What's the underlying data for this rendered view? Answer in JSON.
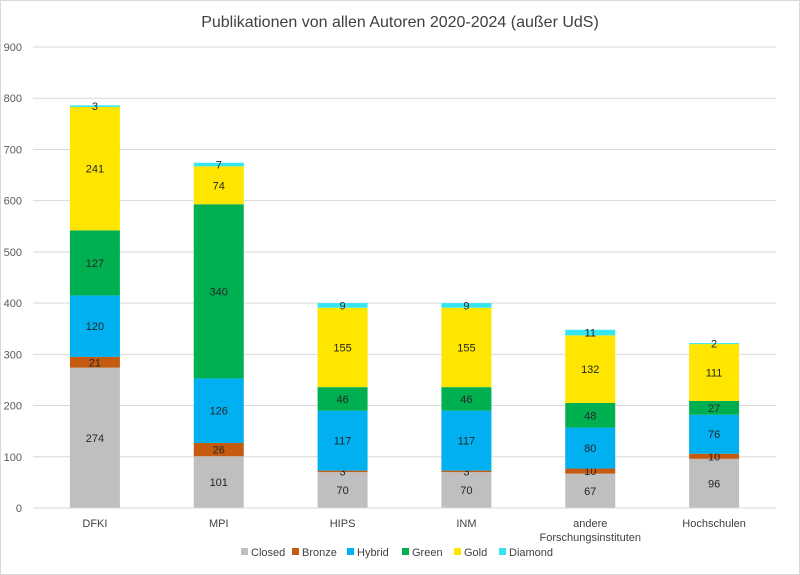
{
  "chart_data": {
    "type": "bar",
    "stacked": true,
    "title": "Publikationen von allen Autoren 2020-2024 (außer UdS)",
    "xlabel": "",
    "ylabel": "",
    "ylim": [
      0,
      900
    ],
    "yticks": [
      0,
      100,
      200,
      300,
      400,
      500,
      600,
      700,
      800,
      900
    ],
    "grid": true,
    "legend_position": "bottom",
    "categories": [
      [
        "DFKI"
      ],
      [
        "MPI"
      ],
      [
        "HIPS"
      ],
      [
        "INM"
      ],
      [
        "andere",
        "Forschungsinstituten"
      ],
      [
        "Hochschulen"
      ]
    ],
    "series": [
      {
        "name": "Closed",
        "color": "#bfbfbf",
        "values": [
          274,
          101,
          70,
          70,
          67,
          96
        ]
      },
      {
        "name": "Bronze",
        "color": "#c55a11",
        "values": [
          21,
          26,
          3,
          3,
          10,
          10
        ]
      },
      {
        "name": "Hybrid",
        "color": "#00b0f0",
        "values": [
          120,
          126,
          117,
          117,
          80,
          76
        ]
      },
      {
        "name": "Green",
        "color": "#00b050",
        "values": [
          127,
          340,
          46,
          46,
          48,
          27
        ]
      },
      {
        "name": "Gold",
        "color": "#ffe600",
        "values": [
          241,
          74,
          155,
          155,
          132,
          111
        ]
      },
      {
        "name": "Diamond",
        "color": "#33e6f2",
        "values": [
          3,
          7,
          9,
          9,
          11,
          2
        ]
      }
    ]
  }
}
